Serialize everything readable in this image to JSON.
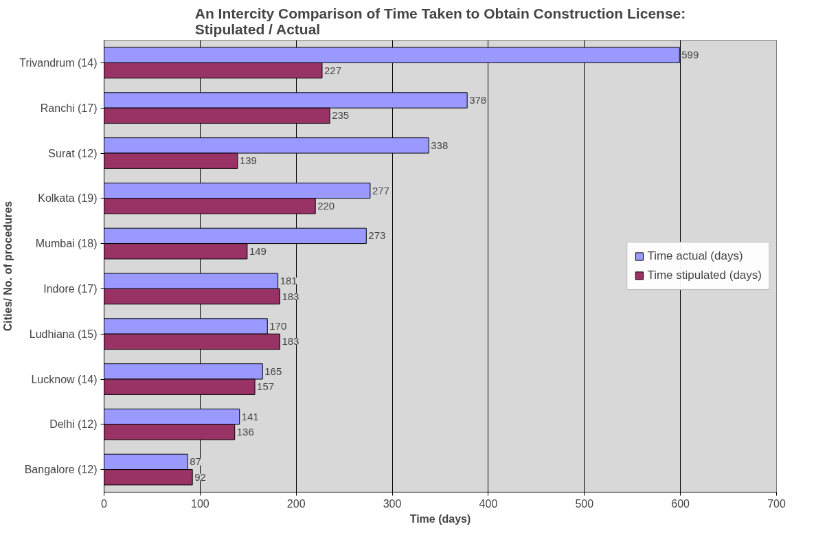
{
  "chart_data": {
    "type": "bar",
    "orientation": "horizontal",
    "title": "An Intercity Comparison of Time Taken to Obtain Construction License: Stipulated / Actual",
    "xlabel": "Time (days)",
    "ylabel": "Cities/ No. of procedures",
    "categories": [
      "Trivandrum (14)",
      "Ranchi (17)",
      "Surat (12)",
      "Kolkata (19)",
      "Mumbai (18)",
      "Indore (17)",
      "Ludhiana (15)",
      "Lucknow (14)",
      "Delhi (12)",
      "Bangalore (12)"
    ],
    "series": [
      {
        "name": "Time actual (days)",
        "color": "#9999ff",
        "values": [
          599,
          378,
          338,
          277,
          273,
          181,
          170,
          165,
          141,
          87
        ]
      },
      {
        "name": "Time stipulated (days)",
        "color": "#993366",
        "values": [
          227,
          235,
          139,
          220,
          149,
          183,
          183,
          157,
          136,
          92
        ]
      }
    ],
    "xlim": [
      0,
      700
    ],
    "xticks": [
      0,
      100,
      200,
      300,
      400,
      500,
      600,
      700
    ],
    "grid": "x",
    "legend": "right",
    "data_labels": true
  }
}
